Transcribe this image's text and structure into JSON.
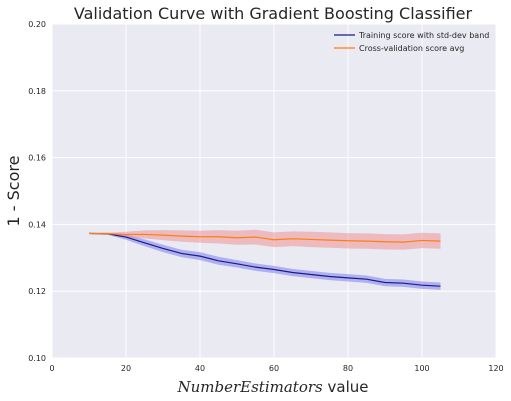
{
  "colors": {
    "background": "#eaeaf2",
    "grid": "#ffffff",
    "train_line": "#1a1a8c",
    "train_band": "#8080ee",
    "cv_line": "#ff7f0e",
    "cv_band": "#f08080"
  },
  "chart_data": {
    "type": "line",
    "title": "Validation Curve with Gradient Boosting Classifier",
    "xlabel_italic": "NumberEstimators",
    "xlabel_suffix": " value",
    "ylabel": "1 - Score",
    "xlim": [
      0,
      120
    ],
    "ylim": [
      0.1,
      0.2
    ],
    "xticks": [
      "0",
      "20",
      "40",
      "60",
      "80",
      "100",
      "120"
    ],
    "yticks": [
      "0.10",
      "0.12",
      "0.14",
      "0.16",
      "0.18",
      "0.20"
    ],
    "grid": true,
    "legend_position": "top-right",
    "x": [
      10,
      15,
      20,
      25,
      30,
      35,
      40,
      45,
      50,
      55,
      60,
      65,
      70,
      75,
      80,
      85,
      90,
      95,
      100,
      105
    ],
    "series": [
      {
        "name": "Training score with std-dev band",
        "values": [
          0.1373,
          0.1372,
          0.1362,
          0.1345,
          0.1328,
          0.1313,
          0.1305,
          0.1291,
          0.1282,
          0.1272,
          0.1265,
          0.1256,
          0.125,
          0.1244,
          0.124,
          0.1236,
          0.1226,
          0.1224,
          0.1218,
          0.1215
        ],
        "band_width": [
          0.0002,
          0.0003,
          0.0008,
          0.001,
          0.0011,
          0.0011,
          0.0012,
          0.0012,
          0.0011,
          0.0011,
          0.0011,
          0.0011,
          0.0011,
          0.0011,
          0.0011,
          0.0011,
          0.0011,
          0.0011,
          0.0011,
          0.0011
        ]
      },
      {
        "name": "Cross-validation score avg",
        "values": [
          0.1373,
          0.1372,
          0.137,
          0.137,
          0.1368,
          0.1365,
          0.1363,
          0.1363,
          0.136,
          0.1362,
          0.1354,
          0.1357,
          0.1355,
          0.1353,
          0.1351,
          0.135,
          0.1348,
          0.1347,
          0.1352,
          0.135
        ],
        "band_width": [
          0.0002,
          0.0003,
          0.0008,
          0.0012,
          0.0015,
          0.0017,
          0.0018,
          0.002,
          0.0021,
          0.0022,
          0.0022,
          0.0022,
          0.0023,
          0.0023,
          0.0023,
          0.0023,
          0.0023,
          0.0023,
          0.0023,
          0.0023
        ]
      }
    ]
  }
}
